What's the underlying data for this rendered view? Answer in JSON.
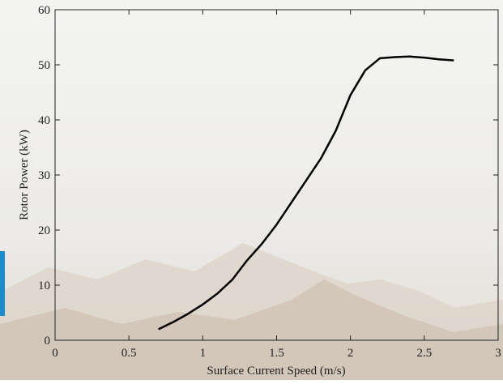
{
  "chart_data": {
    "type": "line",
    "x_label": "Surface Current Speed (m/s)",
    "y_label": "Rotor Power (kW)",
    "x": [
      0.7,
      0.8,
      0.9,
      1.0,
      1.1,
      1.2,
      1.3,
      1.4,
      1.5,
      1.6,
      1.7,
      1.8,
      1.9,
      2.0,
      2.1,
      2.2,
      2.3,
      2.4,
      2.5,
      2.6,
      2.7
    ],
    "series": [
      {
        "color": "#000000",
        "values": [
          2,
          3.3,
          4.8,
          6.5,
          8.5,
          11,
          14.5,
          17.5,
          21,
          25,
          29,
          33,
          38,
          44.5,
          49,
          51.2,
          51.4,
          51.5,
          51.3,
          51,
          50.8
        ]
      }
    ],
    "xlim": [
      0,
      3
    ],
    "xticks": [
      0,
      0.5,
      1,
      1.5,
      2,
      2.5,
      3
    ],
    "ylim": [
      0,
      60
    ],
    "yticks": [
      0,
      10,
      20,
      30,
      40,
      50,
      60
    ]
  }
}
